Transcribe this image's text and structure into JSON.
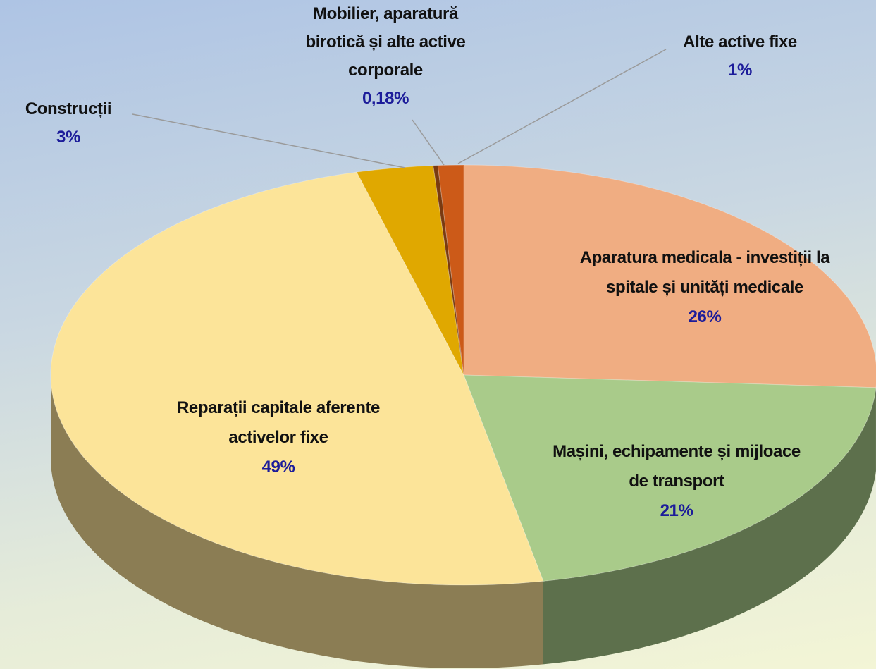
{
  "chart_data": {
    "type": "pie",
    "categories": [
      "Aparatura medicala - investiții la spitale și unități medicale",
      "Mașini, echipamente și mijloace de transport",
      "Reparații capitale aferente activelor fixe",
      "Construcții",
      "Mobilier, aparatură birotică și alte active corporale",
      "Alte active fixe"
    ],
    "values": [
      26,
      21,
      49,
      3,
      0.18,
      1
    ],
    "value_labels": [
      "26%",
      "21%",
      "49%",
      "3%",
      "0,18%",
      "1%"
    ],
    "colors": [
      "#f0ad82",
      "#a9cb8a",
      "#fce499",
      "#e0a800",
      "#7a3a10",
      "#cc5a18"
    ]
  }
}
